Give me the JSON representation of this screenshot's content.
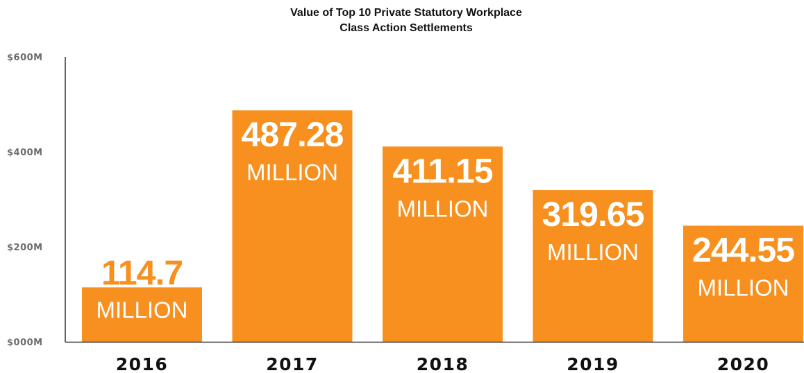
{
  "chart_data": {
    "type": "bar",
    "title_lines": [
      "Value of Top 10 Private Statutory Workplace",
      "Class Action Settlements"
    ],
    "categories": [
      "2016",
      "2017",
      "2018",
      "2019",
      "2020"
    ],
    "values": [
      114.7,
      487.28,
      411.15,
      319.65,
      244.55
    ],
    "value_labels": [
      "114.7",
      "487.28",
      "411.15",
      "319.65",
      "244.55"
    ],
    "unit_label": "MILLION",
    "y_ticks": [
      {
        "value": 0,
        "label": "$000M"
      },
      {
        "value": 200,
        "label": "$200M"
      },
      {
        "value": 400,
        "label": "$400M"
      },
      {
        "value": 600,
        "label": "$600M"
      }
    ],
    "ylim": [
      0,
      600
    ],
    "xlabel": "",
    "ylabel": "",
    "grid": false,
    "colors": {
      "bar": "#F7901E",
      "label_on_bar": "#FFFFFF",
      "label_above_bar": "#F7901E",
      "axis": "#333333"
    }
  }
}
